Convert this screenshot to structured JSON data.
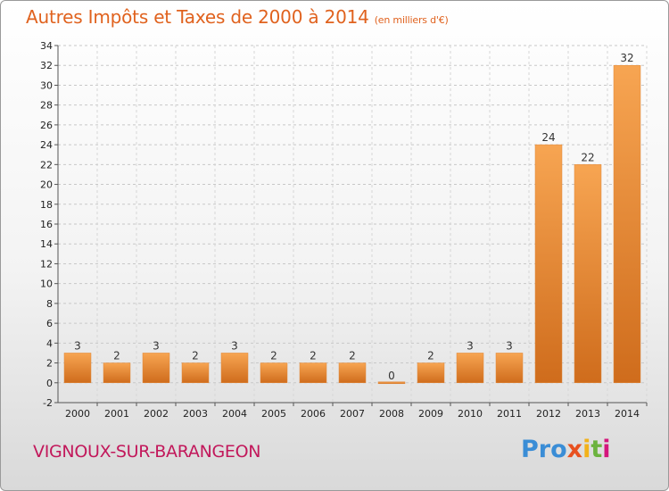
{
  "header": {
    "title": "Autres Impôts et Taxes de 2000 à 2014",
    "unit": "(en milliers d'€)"
  },
  "footer": {
    "city": "VIGNOUX-SUR-BARANGEON",
    "logo": [
      "Pro",
      "x",
      "i",
      "t",
      "i"
    ]
  },
  "colors": {
    "title": "#e0621e",
    "city": "#c2185b",
    "bar_light": "#f7a552",
    "bar_dark": "#cf6c1c"
  },
  "chart_data": {
    "type": "bar",
    "categories": [
      "2000",
      "2001",
      "2002",
      "2003",
      "2004",
      "2005",
      "2006",
      "2007",
      "2008",
      "2009",
      "2010",
      "2011",
      "2012",
      "2013",
      "2014"
    ],
    "values": [
      3,
      2,
      3,
      2,
      3,
      2,
      2,
      2,
      0,
      2,
      3,
      3,
      24,
      22,
      32
    ],
    "data_labels": [
      "3",
      "2",
      "3",
      "2",
      "3",
      "2",
      "2",
      "2",
      "0",
      "2",
      "3",
      "3",
      "24",
      "22",
      "32"
    ],
    "ylim": [
      -2,
      34
    ],
    "yticks": [
      -2,
      0,
      2,
      4,
      6,
      8,
      10,
      12,
      14,
      16,
      18,
      20,
      22,
      24,
      26,
      28,
      30,
      32,
      34
    ],
    "grid": true,
    "title": "Autres Impôts et Taxes de 2000 à 2014",
    "xlabel": "",
    "ylabel": ""
  }
}
